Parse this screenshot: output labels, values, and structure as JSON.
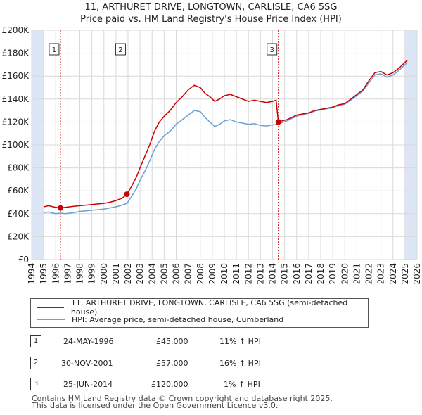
{
  "header": {
    "title_line1": "11, ARTHURET DRIVE, LONGTOWN, CARLISLE, CA6 5SG",
    "title_line2": "Price paid vs. HM Land Registry's House Price Index (HPI)"
  },
  "colors": {
    "property": "#cc0000",
    "hpi": "#6a9fd4",
    "shade": "#dce6f5",
    "marker": "#cc0000"
  },
  "chart_data": {
    "type": "line",
    "x_range": [
      1994,
      2026
    ],
    "ylim": [
      0,
      200000
    ],
    "y_ticks": [
      {
        "value": 0,
        "label": "£0"
      },
      {
        "value": 20000,
        "label": "£20K"
      },
      {
        "value": 40000,
        "label": "£40K"
      },
      {
        "value": 60000,
        "label": "£60K"
      },
      {
        "value": 80000,
        "label": "£80K"
      },
      {
        "value": 100000,
        "label": "£100K"
      },
      {
        "value": 120000,
        "label": "£120K"
      },
      {
        "value": 140000,
        "label": "£140K"
      },
      {
        "value": 160000,
        "label": "£160K"
      },
      {
        "value": 180000,
        "label": "£180K"
      },
      {
        "value": 200000,
        "label": "£200K"
      }
    ],
    "x_ticks": [
      "1994",
      "1995",
      "1996",
      "1997",
      "1998",
      "1999",
      "2000",
      "2001",
      "2002",
      "2003",
      "2004",
      "2005",
      "2006",
      "2007",
      "2008",
      "2009",
      "2010",
      "2011",
      "2012",
      "2013",
      "2014",
      "2015",
      "2016",
      "2017",
      "2018",
      "2019",
      "2020",
      "2021",
      "2022",
      "2023",
      "2024",
      "2025",
      "2026"
    ],
    "shaded_ranges": [
      [
        1994,
        1995.0
      ],
      [
        2025.0,
        2026
      ]
    ],
    "series": [
      {
        "name": "11, ARTHURET DRIVE, LONGTOWN, CARLISLE, CA6 5SG (semi-detached house)",
        "color": "#cc0000",
        "points": [
          [
            1995.0,
            46000
          ],
          [
            1995.4,
            47000
          ],
          [
            1995.8,
            46000
          ],
          [
            1996.0,
            45500
          ],
          [
            1996.39,
            45000
          ],
          [
            1996.8,
            45500
          ],
          [
            1997.5,
            46500
          ],
          [
            1998.0,
            47000
          ],
          [
            1998.5,
            47500
          ],
          [
            1999.0,
            48000
          ],
          [
            1999.5,
            48500
          ],
          [
            2000.0,
            49000
          ],
          [
            2000.5,
            50000
          ],
          [
            2001.0,
            51500
          ],
          [
            2001.5,
            53500
          ],
          [
            2001.91,
            57000
          ],
          [
            2002.3,
            64000
          ],
          [
            2002.7,
            72000
          ],
          [
            2003.0,
            80000
          ],
          [
            2003.4,
            90000
          ],
          [
            2003.8,
            100000
          ],
          [
            2004.2,
            112000
          ],
          [
            2004.6,
            120000
          ],
          [
            2005.0,
            125000
          ],
          [
            2005.5,
            130000
          ],
          [
            2006.0,
            137000
          ],
          [
            2006.5,
            142000
          ],
          [
            2007.0,
            148000
          ],
          [
            2007.5,
            152000
          ],
          [
            2008.0,
            150000
          ],
          [
            2008.4,
            145000
          ],
          [
            2008.8,
            142000
          ],
          [
            2009.2,
            138000
          ],
          [
            2009.6,
            140000
          ],
          [
            2010.0,
            143000
          ],
          [
            2010.5,
            144000
          ],
          [
            2011.0,
            142000
          ],
          [
            2011.5,
            140000
          ],
          [
            2012.0,
            138000
          ],
          [
            2012.5,
            139000
          ],
          [
            2013.0,
            138000
          ],
          [
            2013.5,
            137000
          ],
          [
            2014.0,
            138000
          ],
          [
            2014.3,
            139000
          ],
          [
            2014.48,
            120000
          ],
          [
            2014.8,
            121000
          ],
          [
            2015.2,
            122000
          ],
          [
            2015.6,
            124000
          ],
          [
            2016.0,
            126000
          ],
          [
            2016.5,
            127000
          ],
          [
            2017.0,
            128000
          ],
          [
            2017.5,
            130000
          ],
          [
            2018.0,
            131000
          ],
          [
            2018.5,
            132000
          ],
          [
            2019.0,
            133000
          ],
          [
            2019.5,
            135000
          ],
          [
            2020.0,
            136000
          ],
          [
            2020.5,
            140000
          ],
          [
            2021.0,
            144000
          ],
          [
            2021.5,
            148000
          ],
          [
            2022.0,
            156000
          ],
          [
            2022.5,
            163000
          ],
          [
            2023.0,
            164000
          ],
          [
            2023.5,
            161000
          ],
          [
            2024.0,
            163000
          ],
          [
            2024.5,
            167000
          ],
          [
            2025.0,
            172000
          ],
          [
            2025.2,
            174000
          ]
        ]
      },
      {
        "name": "HPI: Average price, semi-detached house, Cumberland",
        "color": "#6a9fd4",
        "points": [
          [
            1995.0,
            41000
          ],
          [
            1995.4,
            41500
          ],
          [
            1995.8,
            40500
          ],
          [
            1996.0,
            40000
          ],
          [
            1996.39,
            40500
          ],
          [
            1996.8,
            40000
          ],
          [
            1997.5,
            41000
          ],
          [
            1998.0,
            42000
          ],
          [
            1998.5,
            42500
          ],
          [
            1999.0,
            43000
          ],
          [
            1999.5,
            43500
          ],
          [
            2000.0,
            44000
          ],
          [
            2000.5,
            45000
          ],
          [
            2001.0,
            46000
          ],
          [
            2001.5,
            47500
          ],
          [
            2001.91,
            49000
          ],
          [
            2002.3,
            55000
          ],
          [
            2002.7,
            62000
          ],
          [
            2003.0,
            69000
          ],
          [
            2003.4,
            77000
          ],
          [
            2003.8,
            86000
          ],
          [
            2004.2,
            96000
          ],
          [
            2004.6,
            103000
          ],
          [
            2005.0,
            108000
          ],
          [
            2005.5,
            112000
          ],
          [
            2006.0,
            118000
          ],
          [
            2006.5,
            122000
          ],
          [
            2007.0,
            126000
          ],
          [
            2007.5,
            130000
          ],
          [
            2008.0,
            129000
          ],
          [
            2008.4,
            124000
          ],
          [
            2008.8,
            120000
          ],
          [
            2009.2,
            116000
          ],
          [
            2009.6,
            118000
          ],
          [
            2010.0,
            121000
          ],
          [
            2010.5,
            122000
          ],
          [
            2011.0,
            120000
          ],
          [
            2011.5,
            119000
          ],
          [
            2012.0,
            118000
          ],
          [
            2012.5,
            118500
          ],
          [
            2013.0,
            117000
          ],
          [
            2013.5,
            116500
          ],
          [
            2014.0,
            117500
          ],
          [
            2014.48,
            118000
          ],
          [
            2014.8,
            119500
          ],
          [
            2015.2,
            121000
          ],
          [
            2015.6,
            123000
          ],
          [
            2016.0,
            125000
          ],
          [
            2016.5,
            126500
          ],
          [
            2017.0,
            127500
          ],
          [
            2017.5,
            129500
          ],
          [
            2018.0,
            130500
          ],
          [
            2018.5,
            131500
          ],
          [
            2019.0,
            132500
          ],
          [
            2019.5,
            134500
          ],
          [
            2020.0,
            135500
          ],
          [
            2020.5,
            139000
          ],
          [
            2021.0,
            143000
          ],
          [
            2021.5,
            147000
          ],
          [
            2022.0,
            154000
          ],
          [
            2022.5,
            161000
          ],
          [
            2023.0,
            162000
          ],
          [
            2023.5,
            159000
          ],
          [
            2024.0,
            161000
          ],
          [
            2024.5,
            165000
          ],
          [
            2025.0,
            170000
          ],
          [
            2025.2,
            172000
          ]
        ]
      }
    ],
    "sales": [
      {
        "num": "1",
        "x": 1996.39,
        "price": 45000
      },
      {
        "num": "2",
        "x": 2001.91,
        "price": 57000
      },
      {
        "num": "3",
        "x": 2014.48,
        "price": 120000
      }
    ]
  },
  "legend": {
    "property_label": "11, ARTHURET DRIVE, LONGTOWN, CARLISLE, CA6 5SG (semi-detached house)",
    "hpi_label": "HPI: Average price, semi-detached house, Cumberland"
  },
  "sales_table": [
    {
      "num": "1",
      "date": "24-MAY-1996",
      "price": "£45,000",
      "hpi": "11% ↑ HPI"
    },
    {
      "num": "2",
      "date": "30-NOV-2001",
      "price": "£57,000",
      "hpi": "16% ↑ HPI"
    },
    {
      "num": "3",
      "date": "25-JUN-2014",
      "price": "£120,000",
      "hpi": "1% ↑ HPI"
    }
  ],
  "footer": {
    "line1": "Contains HM Land Registry data © Crown copyright and database right 2025.",
    "line2": "This data is licensed under the Open Government Licence v3.0."
  }
}
